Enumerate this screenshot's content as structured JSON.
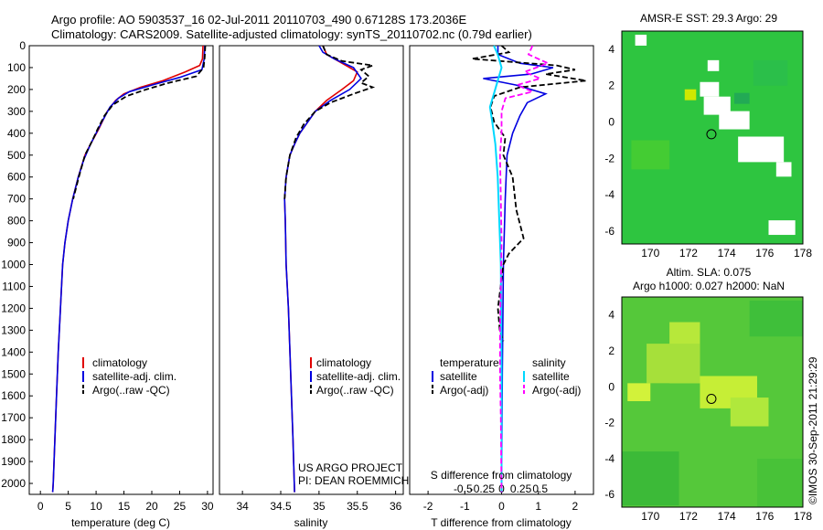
{
  "header": {
    "line1": "Argo profile: AO 5903537_16 02-Jul-2011 20110703_490 0.67128S 173.2036E",
    "line2": "Climatology: CARS2009. Satellite-adjusted climatology: synTS_20110702.nc (0.79d earlier)"
  },
  "colors": {
    "clim": "#e00000",
    "sat": "#0000e0",
    "argo": "#000000",
    "sal_sat": "#00d8ff",
    "sal_argo": "#ff00ff"
  },
  "chart_data": [
    {
      "type": "line",
      "id": "temperature",
      "xlabel": "temperature (deg C)",
      "ylabel": "",
      "xlim": [
        -2,
        31
      ],
      "ylim": [
        2050,
        0
      ],
      "xticks": [
        0,
        5,
        10,
        15,
        20,
        25,
        30
      ],
      "yticks": [
        0,
        100,
        200,
        300,
        400,
        500,
        600,
        700,
        800,
        900,
        1000,
        1100,
        1200,
        1300,
        1400,
        1500,
        1600,
        1700,
        1800,
        1900,
        2000
      ],
      "legend": [
        "climatology",
        "satellite-adj. clim.",
        "Argo(..raw -QC)"
      ],
      "series": [
        {
          "name": "climatology",
          "points": [
            [
              29.2,
              0
            ],
            [
              29.1,
              60
            ],
            [
              28.6,
              90
            ],
            [
              26,
              120
            ],
            [
              22,
              160
            ],
            [
              18,
              190
            ],
            [
              15,
              220
            ],
            [
              13.5,
              250
            ],
            [
              12,
              300
            ],
            [
              10.5,
              380
            ],
            [
              9,
              450
            ],
            [
              8,
              500
            ],
            [
              6.8,
              600
            ],
            [
              5.8,
              700
            ],
            [
              5,
              800
            ],
            [
              4.4,
              900
            ],
            [
              4,
              1000
            ],
            [
              3.6,
              1200
            ],
            [
              3.2,
              1400
            ],
            [
              2.9,
              1600
            ],
            [
              2.6,
              1800
            ],
            [
              2.3,
              2000
            ],
            [
              2.2,
              2040
            ]
          ]
        },
        {
          "name": "satellite-adj. clim.",
          "points": [
            [
              29.5,
              0
            ],
            [
              29.4,
              60
            ],
            [
              29,
              110
            ],
            [
              25,
              145
            ],
            [
              20,
              180
            ],
            [
              16,
              210
            ],
            [
              14,
              240
            ],
            [
              12.5,
              280
            ],
            [
              11,
              350
            ],
            [
              10,
              400
            ],
            [
              9,
              450
            ],
            [
              7.8,
              520
            ],
            [
              6.8,
              600
            ],
            [
              5.8,
              700
            ],
            [
              5,
              800
            ],
            [
              4.4,
              900
            ],
            [
              4,
              1000
            ],
            [
              3.6,
              1200
            ],
            [
              3.2,
              1400
            ],
            [
              2.9,
              1600
            ],
            [
              2.6,
              1800
            ],
            [
              2.3,
              2000
            ],
            [
              2.2,
              2040
            ]
          ]
        },
        {
          "name": "Argo(..raw -QC)",
          "points": [
            [
              29.6,
              0
            ],
            [
              29.5,
              50
            ],
            [
              29.3,
              100
            ],
            [
              28,
              140
            ],
            [
              23,
              170
            ],
            [
              19,
              200
            ],
            [
              15.5,
              230
            ],
            [
              13,
              270
            ],
            [
              11.5,
              320
            ],
            [
              10.3,
              380
            ],
            [
              9.2,
              440
            ],
            [
              8,
              500
            ],
            [
              6.9,
              600
            ],
            [
              5.9,
              700
            ]
          ]
        }
      ]
    },
    {
      "type": "line",
      "id": "salinity",
      "xlabel": "salinity",
      "xlim": [
        33.7,
        36.1
      ],
      "ylim": [
        2050,
        0
      ],
      "xticks": [
        34,
        34.5,
        35,
        35.5,
        36
      ],
      "legend": [
        "climatology",
        "satellite-adj. clim.",
        "Argo(..raw -QC)"
      ],
      "annotation": [
        "US ARGO PROJECT",
        "PI: DEAN ROEMMICH"
      ],
      "series": [
        {
          "name": "climatology",
          "points": [
            [
              35.05,
              0
            ],
            [
              35.1,
              40
            ],
            [
              35.3,
              80
            ],
            [
              35.5,
              120
            ],
            [
              35.45,
              160
            ],
            [
              35.3,
              200
            ],
            [
              35.1,
              250
            ],
            [
              34.95,
              300
            ],
            [
              34.85,
              350
            ],
            [
              34.75,
              400
            ],
            [
              34.68,
              450
            ],
            [
              34.62,
              500
            ],
            [
              34.57,
              600
            ],
            [
              34.55,
              700
            ],
            [
              34.56,
              800
            ],
            [
              34.57,
              1000
            ],
            [
              34.6,
              1200
            ],
            [
              34.63,
              1500
            ],
            [
              34.66,
              1800
            ],
            [
              34.68,
              2040
            ]
          ]
        },
        {
          "name": "satellite-adj. clim.",
          "points": [
            [
              35.0,
              0
            ],
            [
              35.05,
              30
            ],
            [
              35.2,
              60
            ],
            [
              35.45,
              100
            ],
            [
              35.55,
              150
            ],
            [
              35.4,
              200
            ],
            [
              35.15,
              250
            ],
            [
              34.95,
              300
            ],
            [
              34.85,
              350
            ],
            [
              34.75,
              400
            ],
            [
              34.68,
              450
            ],
            [
              34.62,
              500
            ],
            [
              34.57,
              600
            ],
            [
              34.55,
              700
            ],
            [
              34.56,
              800
            ],
            [
              34.57,
              1000
            ],
            [
              34.6,
              1200
            ],
            [
              34.63,
              1500
            ],
            [
              34.66,
              1800
            ],
            [
              34.68,
              2040
            ]
          ]
        },
        {
          "name": "Argo(..raw -QC)",
          "points": [
            [
              35.05,
              0
            ],
            [
              35.1,
              40
            ],
            [
              35.3,
              70
            ],
            [
              35.7,
              90
            ],
            [
              35.55,
              110
            ],
            [
              35.65,
              140
            ],
            [
              35.55,
              170
            ],
            [
              35.7,
              190
            ],
            [
              35.45,
              220
            ],
            [
              35.15,
              260
            ],
            [
              34.95,
              300
            ],
            [
              34.8,
              360
            ],
            [
              34.7,
              420
            ],
            [
              34.62,
              500
            ],
            [
              34.57,
              600
            ],
            [
              34.55,
              700
            ]
          ]
        }
      ]
    },
    {
      "type": "line",
      "id": "difference",
      "xlabel": "T difference from climatology",
      "xlabel_top": "S difference from climatology",
      "xlim": [
        -2.5,
        2.5
      ],
      "ylim": [
        2050,
        0
      ],
      "xticks": [
        -2,
        -1,
        0,
        1,
        2
      ],
      "sticks": [
        -0.5,
        -0.25,
        0,
        0.25,
        0.5
      ],
      "legend_heads": [
        "temperature",
        "salinity"
      ],
      "legend": [
        "satellite",
        "Argo(-adj)",
        "satellite",
        "Argo(-adj)"
      ],
      "series": [
        {
          "name": "T satellite",
          "points": [
            [
              -0.1,
              0
            ],
            [
              -0.1,
              40
            ],
            [
              0.5,
              80
            ],
            [
              1.4,
              100
            ],
            [
              0.8,
              130
            ],
            [
              -0.5,
              150
            ],
            [
              0.4,
              180
            ],
            [
              1.2,
              220
            ],
            [
              0.7,
              260
            ],
            [
              0.5,
              320
            ],
            [
              0.3,
              400
            ],
            [
              0.15,
              500
            ],
            [
              0.1,
              700
            ],
            [
              0.05,
              1000
            ],
            [
              0.02,
              1500
            ],
            [
              0,
              2040
            ]
          ]
        },
        {
          "name": "T Argo(-adj)",
          "points": [
            [
              0,
              0
            ],
            [
              0.2,
              30
            ],
            [
              -0.8,
              60
            ],
            [
              1.5,
              90
            ],
            [
              2.0,
              110
            ],
            [
              1.2,
              130
            ],
            [
              2.3,
              160
            ],
            [
              0.5,
              190
            ],
            [
              -0.2,
              230
            ],
            [
              -0.3,
              280
            ],
            [
              -0.2,
              350
            ],
            [
              0.1,
              420
            ],
            [
              0.05,
              500
            ],
            [
              0.3,
              600
            ],
            [
              0.4,
              750
            ],
            [
              0.6,
              880
            ],
            [
              0.2,
              950
            ],
            [
              0.05,
              1000
            ],
            [
              -0.1,
              1200
            ],
            [
              -0.05,
              1300
            ],
            [
              0.05,
              1350
            ]
          ]
        },
        {
          "name": "S satellite",
          "points": [
            [
              -0.1,
              0
            ],
            [
              -0.05,
              40
            ],
            [
              0,
              100
            ],
            [
              -0.05,
              160
            ],
            [
              -0.1,
              220
            ],
            [
              -0.15,
              280
            ],
            [
              -0.12,
              350
            ],
            [
              -0.08,
              450
            ],
            [
              -0.05,
              600
            ],
            [
              -0.03,
              800
            ],
            [
              -0.01,
              1000
            ],
            [
              0,
              1500
            ],
            [
              0,
              2040
            ]
          ]
        },
        {
          "name": "S Argo(-adj)",
          "points": [
            [
              0.4,
              0
            ],
            [
              0.35,
              40
            ],
            [
              0.6,
              80
            ],
            [
              0.3,
              120
            ],
            [
              0.5,
              150
            ],
            [
              0.2,
              180
            ],
            [
              0.4,
              210
            ],
            [
              0.05,
              240
            ],
            [
              0,
              300
            ],
            [
              0,
              400
            ],
            [
              -0.02,
              500
            ],
            [
              -0.01,
              700
            ],
            [
              0,
              900
            ],
            [
              -0.01,
              1100
            ],
            [
              -0.02,
              1300
            ],
            [
              -0.02,
              1500
            ],
            [
              -0.01,
              1700
            ],
            [
              0,
              2040
            ]
          ]
        }
      ]
    },
    {
      "type": "heatmap",
      "id": "sst_map",
      "title": "AMSR-E SST: 29.3 Argo: 29",
      "xlim": [
        168.5,
        178
      ],
      "ylim": [
        -6.7,
        5
      ],
      "xticks": [
        170,
        172,
        174,
        176,
        178
      ],
      "yticks": [
        -6,
        -4,
        -2,
        0,
        2,
        4
      ],
      "argo_position": [
        173.2,
        -0.67
      ]
    },
    {
      "type": "heatmap",
      "id": "sla_map",
      "title_line1": "Altim. SLA: 0.075",
      "title_line2": "Argo h1000: 0.027 h2000: NaN",
      "xlim": [
        168.5,
        178
      ],
      "ylim": [
        -6.7,
        5
      ],
      "xticks": [
        170,
        172,
        174,
        176,
        178
      ],
      "yticks": [
        -6,
        -4,
        -2,
        0,
        2,
        4
      ],
      "argo_position": [
        173.2,
        -0.67
      ]
    }
  ],
  "credit": "©IMOS 30-Sep-2011 21:29:29"
}
